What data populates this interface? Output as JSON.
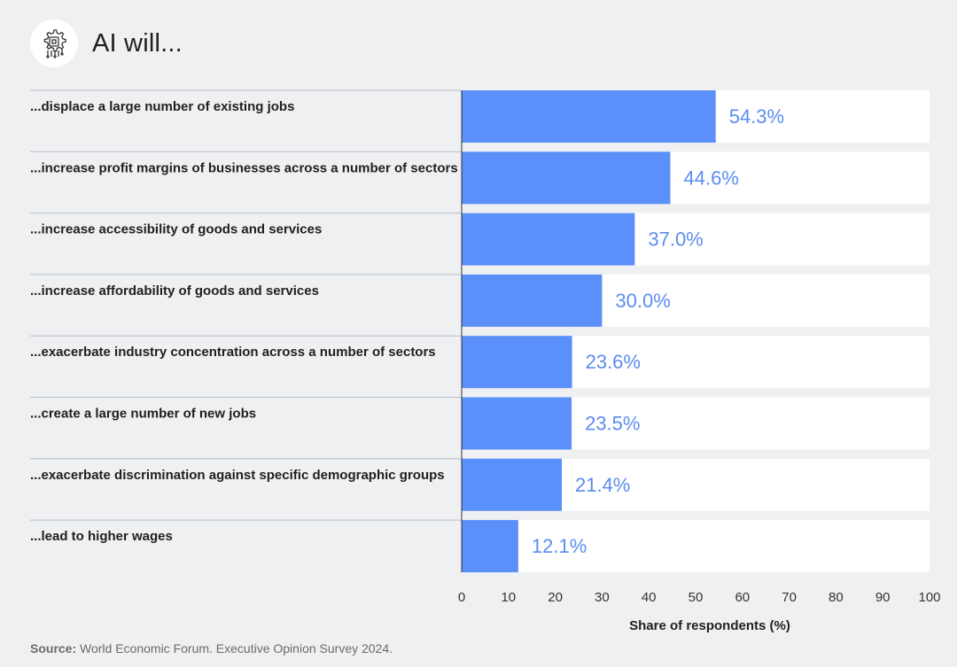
{
  "header": {
    "title": "AI will...",
    "icon": "ai-chip-gear-icon"
  },
  "chart_data": {
    "type": "bar",
    "orientation": "horizontal",
    "categories": [
      "...displace a large number of existing jobs",
      "...increase profit margins of businesses across a number of sectors",
      "...increase accessibility of goods and services",
      "...increase affordability of goods and services",
      "...exacerbate industry concentration across a number of sectors",
      "...create a large number of new jobs",
      "...exacerbate discrimination against specific demographic groups",
      "...lead to higher wages"
    ],
    "values": [
      54.3,
      44.6,
      37.0,
      30.0,
      23.6,
      23.5,
      21.4,
      12.1
    ],
    "value_labels": [
      "54.3%",
      "44.6%",
      "37.0%",
      "30.0%",
      "23.6%",
      "23.5%",
      "21.4%",
      "12.1%"
    ],
    "xlabel": "Share of respondents (%)",
    "xlim": [
      0,
      100
    ],
    "xticks": [
      0,
      10,
      20,
      30,
      40,
      50,
      60,
      70,
      80,
      90,
      100
    ],
    "bar_color": "#5b8ff9",
    "track_color": "#ffffff",
    "value_label_color": "#5b8def"
  },
  "source": {
    "label": "Source:",
    "text": " World Economic Forum. Executive Opinion Survey 2024."
  }
}
